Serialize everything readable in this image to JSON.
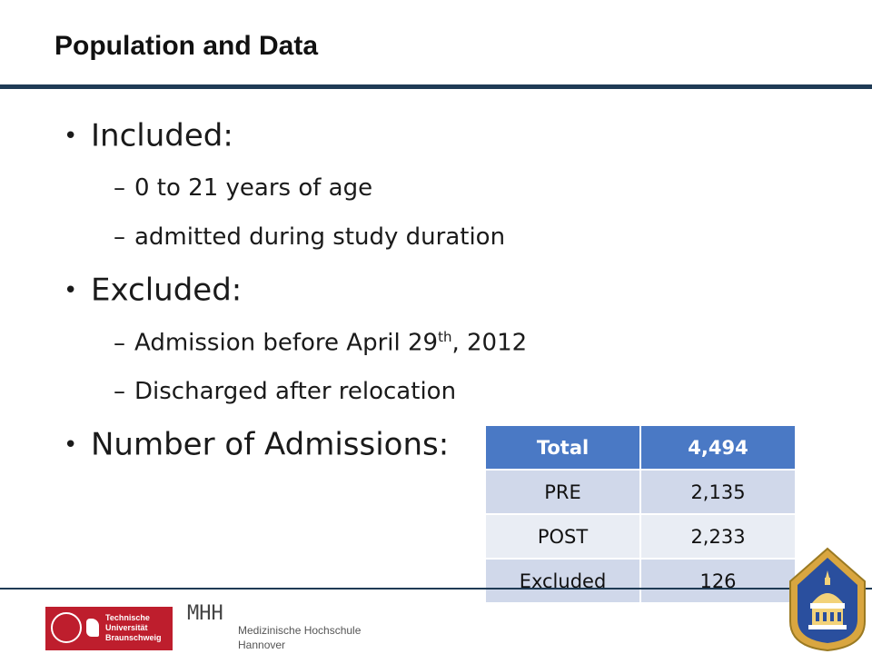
{
  "slide": {
    "title": "Population and Data",
    "bullets": {
      "included": "Included:",
      "age": "0 to 21 years of age",
      "admitted": "admitted during study duration",
      "excluded": "Excluded:",
      "admission_before": "Admission before April 29",
      "admission_sup": "th",
      "admission_year": ", 2012",
      "discharged": "Discharged after relocation",
      "number": "Number of Admissions:"
    },
    "table": {
      "header": [
        "Total",
        "4,494"
      ],
      "rows": [
        [
          "PRE",
          "2,135"
        ],
        [
          "POST",
          "2,233"
        ],
        [
          "Excluded",
          "126"
        ]
      ]
    }
  },
  "footer": {
    "tu_line1": "Technische",
    "tu_line2": "Universität",
    "tu_line3": "Braunschweig",
    "mhh_mark": "MHH",
    "mhh_line1": "Medizinische Hochschule",
    "mhh_line2": "Hannover"
  },
  "colors": {
    "rule": "#1f3b55",
    "table_header": "#4a79c5",
    "table_band": "#d0d8ea",
    "table_light": "#e9edf4",
    "tu_red": "#be1e2d"
  },
  "icons": [
    "tu-braunschweig-logo",
    "mhh-logo",
    "johns-hopkins-shield-logo"
  ]
}
